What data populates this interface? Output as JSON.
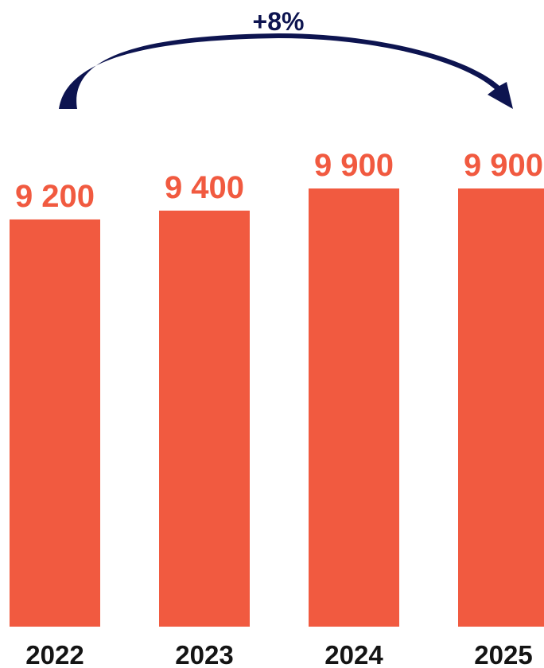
{
  "chart_data": {
    "type": "bar",
    "categories": [
      "2022",
      "2023",
      "2024",
      "2025"
    ],
    "values": [
      9200,
      9400,
      9900,
      9900
    ],
    "value_labels": [
      "9 200",
      "9 400",
      "9 900",
      "9 900"
    ],
    "title": "",
    "xlabel": "",
    "ylabel": "",
    "ylim": [
      0,
      9900
    ],
    "grid": false,
    "legend": "none",
    "annotation": {
      "text": "+8%",
      "from_category": "2022",
      "to_category": "2025",
      "shape": "curved-arrow"
    },
    "colors": {
      "bar": "#f15a40",
      "value_label": "#f15a40",
      "arrow": "#0d1450",
      "category_label": "#141414"
    }
  }
}
